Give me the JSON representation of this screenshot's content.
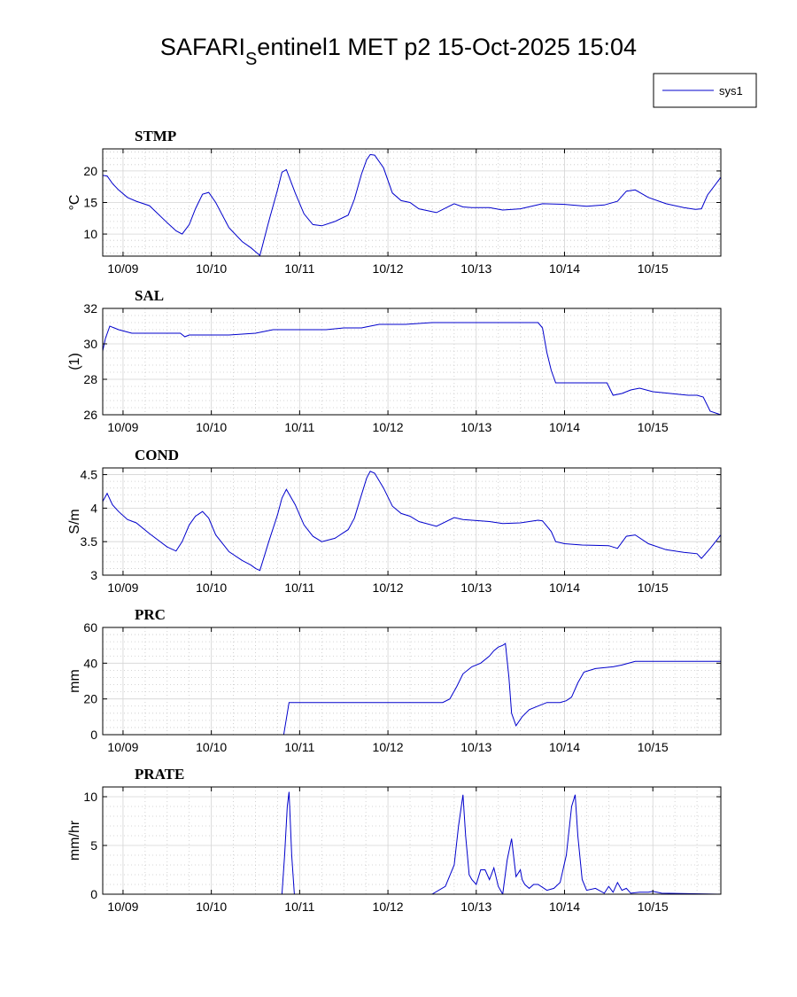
{
  "figure": {
    "title_prefix": "SAFARI",
    "title_sub": "S",
    "title_suffix": "entinel1 MET p2 15-Oct-2025 15:04",
    "legend": {
      "entries": [
        {
          "label": "sys1",
          "color": "#0000cc"
        }
      ]
    },
    "line_color": "#0000cc"
  },
  "chart_data": [
    {
      "type": "line",
      "title": "STMP",
      "ylabel": "°C",
      "xlabel": "",
      "xlim": [
        -0.23,
        6.77
      ],
      "ylim": [
        6.5,
        23.5
      ],
      "yticks": [
        10,
        15,
        20
      ],
      "xticks": [
        0,
        1,
        2,
        3,
        4,
        5,
        6
      ],
      "xticklabels": [
        "10/09",
        "10/10",
        "10/11",
        "10/12",
        "10/13",
        "10/14",
        "10/15"
      ],
      "grid": true,
      "series": [
        {
          "name": "sys1",
          "x": [
            -0.23,
            -0.18,
            -0.12,
            -0.05,
            0.05,
            0.15,
            0.3,
            0.5,
            0.6,
            0.67,
            0.75,
            0.82,
            0.9,
            0.97,
            1.05,
            1.2,
            1.35,
            1.45,
            1.5,
            1.55,
            1.65,
            1.75,
            1.8,
            1.85,
            1.95,
            2.05,
            2.15,
            2.25,
            2.4,
            2.55,
            2.62,
            2.7,
            2.76,
            2.8,
            2.85,
            2.95,
            3.05,
            3.15,
            3.25,
            3.35,
            3.55,
            3.75,
            3.85,
            3.95,
            4.15,
            4.3,
            4.5,
            4.75,
            5.0,
            5.25,
            5.45,
            5.6,
            5.7,
            5.8,
            5.95,
            6.15,
            6.35,
            6.48,
            6.55,
            6.62,
            6.77
          ],
          "y": [
            19.3,
            19.2,
            18.0,
            17.0,
            15.8,
            15.2,
            14.5,
            11.8,
            10.5,
            10.0,
            11.5,
            14.0,
            16.3,
            16.6,
            15.0,
            11.0,
            8.8,
            7.8,
            7.2,
            6.6,
            12.0,
            17.0,
            19.8,
            20.2,
            16.5,
            13.2,
            11.5,
            11.3,
            12.0,
            13.0,
            15.5,
            19.5,
            21.8,
            22.6,
            22.5,
            20.5,
            16.5,
            15.3,
            15.0,
            14.0,
            13.4,
            14.8,
            14.3,
            14.2,
            14.2,
            13.8,
            14.0,
            14.8,
            14.7,
            14.4,
            14.6,
            15.2,
            16.8,
            17.0,
            15.8,
            14.8,
            14.2,
            13.9,
            14.0,
            16.2,
            19.0
          ]
        }
      ]
    },
    {
      "type": "line",
      "title": "SAL",
      "ylabel": "(1)",
      "xlabel": "",
      "xlim": [
        -0.23,
        6.77
      ],
      "ylim": [
        26,
        32
      ],
      "yticks": [
        26,
        28,
        30,
        32
      ],
      "xticks": [
        0,
        1,
        2,
        3,
        4,
        5,
        6
      ],
      "xticklabels": [
        "10/09",
        "10/10",
        "10/11",
        "10/12",
        "10/13",
        "10/14",
        "10/15"
      ],
      "grid": true,
      "series": [
        {
          "name": "sys1",
          "x": [
            -0.23,
            -0.2,
            -0.15,
            -0.05,
            0.1,
            0.3,
            0.5,
            0.65,
            0.7,
            0.75,
            0.85,
            1.0,
            1.2,
            1.5,
            1.6,
            1.7,
            1.85,
            2.0,
            2.3,
            2.5,
            2.7,
            2.8,
            2.9,
            3.0,
            3.2,
            3.5,
            3.8,
            4.1,
            4.3,
            4.5,
            4.7,
            4.75,
            4.8,
            4.85,
            4.9,
            5.0,
            5.2,
            5.4,
            5.48,
            5.55,
            5.65,
            5.75,
            5.85,
            6.0,
            6.2,
            6.4,
            6.5,
            6.57,
            6.65,
            6.77
          ],
          "y": [
            29.6,
            30.3,
            31.0,
            30.8,
            30.6,
            30.6,
            30.6,
            30.6,
            30.4,
            30.5,
            30.5,
            30.5,
            30.5,
            30.6,
            30.7,
            30.8,
            30.8,
            30.8,
            30.8,
            30.9,
            30.9,
            31.0,
            31.1,
            31.1,
            31.1,
            31.2,
            31.2,
            31.2,
            31.2,
            31.2,
            31.2,
            30.9,
            29.5,
            28.5,
            27.8,
            27.8,
            27.8,
            27.8,
            27.8,
            27.1,
            27.2,
            27.4,
            27.5,
            27.3,
            27.2,
            27.1,
            27.1,
            27.0,
            26.2,
            26.0
          ]
        }
      ]
    },
    {
      "type": "line",
      "title": "COND",
      "ylabel": "S/m",
      "xlabel": "",
      "xlim": [
        -0.23,
        6.77
      ],
      "ylim": [
        3,
        4.6
      ],
      "yticks": [
        3,
        3.5,
        4,
        4.5
      ],
      "xticks": [
        0,
        1,
        2,
        3,
        4,
        5,
        6
      ],
      "xticklabels": [
        "10/09",
        "10/10",
        "10/11",
        "10/12",
        "10/13",
        "10/14",
        "10/15"
      ],
      "grid": true,
      "series": [
        {
          "name": "sys1",
          "x": [
            -0.23,
            -0.18,
            -0.12,
            -0.05,
            0.05,
            0.15,
            0.3,
            0.5,
            0.6,
            0.67,
            0.75,
            0.82,
            0.9,
            0.97,
            1.05,
            1.2,
            1.35,
            1.45,
            1.5,
            1.55,
            1.65,
            1.75,
            1.8,
            1.85,
            1.95,
            2.05,
            2.15,
            2.25,
            2.4,
            2.55,
            2.62,
            2.7,
            2.76,
            2.8,
            2.85,
            2.95,
            3.05,
            3.15,
            3.25,
            3.35,
            3.55,
            3.75,
            3.85,
            3.95,
            4.15,
            4.3,
            4.5,
            4.7,
            4.75,
            4.85,
            4.9,
            5.0,
            5.2,
            5.5,
            5.6,
            5.7,
            5.8,
            5.95,
            6.15,
            6.35,
            6.5,
            6.55,
            6.65,
            6.77
          ],
          "y": [
            4.1,
            4.22,
            4.05,
            3.95,
            3.83,
            3.78,
            3.62,
            3.42,
            3.36,
            3.5,
            3.75,
            3.88,
            3.95,
            3.85,
            3.6,
            3.35,
            3.22,
            3.15,
            3.1,
            3.07,
            3.5,
            3.9,
            4.15,
            4.28,
            4.05,
            3.75,
            3.58,
            3.5,
            3.55,
            3.68,
            3.85,
            4.2,
            4.45,
            4.55,
            4.52,
            4.3,
            4.03,
            3.92,
            3.88,
            3.8,
            3.73,
            3.86,
            3.83,
            3.82,
            3.8,
            3.77,
            3.78,
            3.82,
            3.81,
            3.65,
            3.5,
            3.47,
            3.45,
            3.44,
            3.4,
            3.58,
            3.6,
            3.47,
            3.38,
            3.34,
            3.32,
            3.25,
            3.4,
            3.6
          ]
        }
      ]
    },
    {
      "type": "line",
      "title": "PRC",
      "ylabel": "mm",
      "xlabel": "",
      "xlim": [
        -0.23,
        6.77
      ],
      "ylim": [
        0,
        60
      ],
      "yticks": [
        0,
        20,
        40,
        60
      ],
      "xticks": [
        0,
        1,
        2,
        3,
        4,
        5,
        6
      ],
      "xticklabels": [
        "10/09",
        "10/10",
        "10/11",
        "10/12",
        "10/13",
        "10/14",
        "10/15"
      ],
      "grid": true,
      "series": [
        {
          "name": "sys1",
          "x": [
            -0.23,
            1.82,
            1.88,
            3.5,
            3.62,
            3.7,
            3.78,
            3.85,
            3.95,
            4.05,
            4.15,
            4.2,
            4.25,
            4.3,
            4.33,
            4.37,
            4.4,
            4.45,
            4.52,
            4.6,
            4.7,
            4.8,
            4.95,
            5.02,
            5.08,
            5.15,
            5.22,
            5.35,
            5.55,
            5.65,
            5.8,
            6.0,
            6.3,
            6.77
          ],
          "y": [
            0,
            0,
            18,
            18,
            18,
            20,
            27,
            34,
            38,
            40,
            44,
            47,
            49,
            50,
            51,
            32,
            12,
            5,
            10,
            14,
            16,
            18,
            18,
            19,
            21,
            29,
            35,
            37,
            38,
            39,
            41,
            41,
            41,
            41
          ]
        }
      ]
    },
    {
      "type": "line",
      "title": "PRATE",
      "ylabel": "mm/hr",
      "xlabel": "",
      "xlim": [
        -0.23,
        6.77
      ],
      "ylim": [
        0,
        11
      ],
      "yticks": [
        0,
        5,
        10
      ],
      "xticks": [
        0,
        1,
        2,
        3,
        4,
        5,
        6
      ],
      "xticklabels": [
        "10/09",
        "10/10",
        "10/11",
        "10/12",
        "10/13",
        "10/14",
        "10/15"
      ],
      "grid": true,
      "series": [
        {
          "name": "sys1",
          "x": [
            -0.23,
            1.8,
            1.83,
            1.86,
            1.88,
            1.91,
            1.94,
            3.5,
            3.65,
            3.75,
            3.8,
            3.85,
            3.88,
            3.92,
            3.95,
            4.0,
            4.05,
            4.1,
            4.15,
            4.2,
            4.25,
            4.3,
            4.35,
            4.4,
            4.45,
            4.5,
            4.52,
            4.55,
            4.6,
            4.65,
            4.7,
            4.8,
            4.88,
            4.95,
            5.02,
            5.08,
            5.12,
            5.15,
            5.2,
            5.25,
            5.35,
            5.45,
            5.5,
            5.55,
            5.6,
            5.65,
            5.7,
            5.75,
            5.85,
            5.95,
            6.0,
            6.1,
            6.77
          ],
          "y": [
            0,
            0,
            4,
            9,
            10.5,
            4,
            0,
            0,
            0.8,
            3,
            7,
            10.2,
            6,
            2,
            1.5,
            1,
            2.5,
            2.5,
            1.5,
            2.7,
            0.8,
            0,
            3.5,
            5.7,
            1.8,
            2.5,
            1.5,
            1,
            0.6,
            1,
            1,
            0.4,
            0.6,
            1.2,
            4,
            9,
            10.2,
            6,
            1.5,
            0.4,
            0.6,
            0.1,
            0.8,
            0.2,
            1.2,
            0.4,
            0.6,
            0.1,
            0.2,
            0.2,
            0.3,
            0.1,
            0
          ]
        }
      ]
    }
  ]
}
